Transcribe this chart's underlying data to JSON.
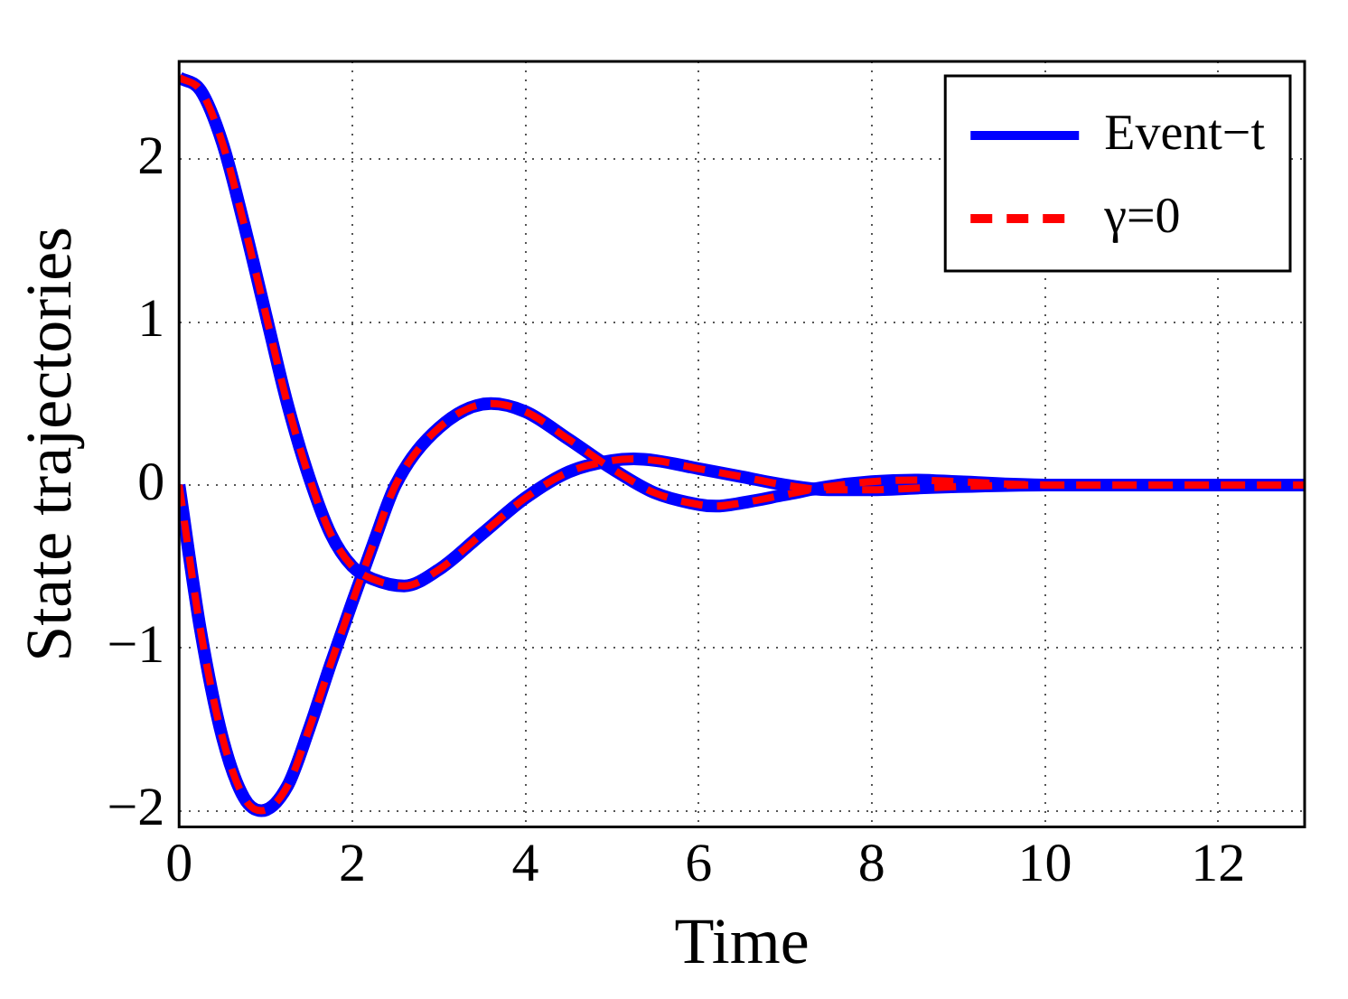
{
  "chart_data": {
    "type": "line",
    "xlabel": "Time",
    "ylabel": "State trajectories",
    "xlim": [
      0,
      13
    ],
    "xticks": [
      0,
      2,
      4,
      6,
      8,
      10,
      12
    ],
    "ylim": [
      -2.1,
      2.6
    ],
    "yticks": [
      -2,
      -1,
      0,
      1,
      2
    ],
    "grid": true,
    "legend": "top right",
    "marker": "none",
    "series": [
      {
        "name": "Event−t",
        "color": "#0000ff",
        "line_style": "solid",
        "x": [
          0,
          0.25,
          0.5,
          0.75,
          1,
          1.25,
          1.5,
          1.75,
          2,
          2.25,
          2.6,
          3,
          3.5,
          4,
          4.5,
          5,
          5.25,
          5.5,
          6,
          6.5,
          7,
          7.5,
          8,
          8.5,
          9,
          10,
          11,
          13
        ],
        "values": [
          2.5,
          2.42,
          2.1,
          1.6,
          1.05,
          0.5,
          0.05,
          -0.3,
          -0.5,
          -0.58,
          -0.62,
          -0.52,
          -0.3,
          -0.08,
          0.08,
          0.15,
          0.16,
          0.15,
          0.1,
          0.05,
          0,
          -0.03,
          -0.03,
          -0.02,
          -0.01,
          0,
          0,
          0
        ]
      },
      {
        "color": "#0000ff",
        "line_style": "solid",
        "x": [
          0,
          0.25,
          0.5,
          0.75,
          0.95,
          1.25,
          1.5,
          1.75,
          2,
          2.25,
          2.5,
          3,
          3.6,
          4,
          4.5,
          5,
          5.5,
          6,
          6.2,
          6.5,
          7,
          7.5,
          8,
          8.5,
          9,
          10,
          13
        ],
        "values": [
          0,
          -0.9,
          -1.55,
          -1.92,
          -2,
          -1.85,
          -1.5,
          -1.1,
          -0.72,
          -0.35,
          0,
          0.35,
          0.5,
          0.45,
          0.28,
          0.1,
          -0.05,
          -0.12,
          -0.13,
          -0.11,
          -0.06,
          -0.01,
          0.02,
          0.03,
          0.02,
          0,
          0
        ]
      },
      {
        "name": "γ=0",
        "color": "#ff0000",
        "line_style": "dashed",
        "x": [
          0,
          0.25,
          0.5,
          0.75,
          1,
          1.25,
          1.5,
          1.75,
          2,
          2.25,
          2.6,
          3,
          3.5,
          4,
          4.5,
          5,
          5.25,
          5.5,
          6,
          6.5,
          7,
          7.5,
          8,
          8.5,
          9,
          10,
          11,
          13
        ],
        "values": [
          2.5,
          2.42,
          2.1,
          1.6,
          1.05,
          0.5,
          0.05,
          -0.3,
          -0.5,
          -0.58,
          -0.62,
          -0.52,
          -0.3,
          -0.08,
          0.08,
          0.15,
          0.16,
          0.15,
          0.1,
          0.05,
          0,
          -0.03,
          -0.03,
          -0.02,
          -0.01,
          0,
          0,
          0
        ]
      },
      {
        "color": "#ff0000",
        "line_style": "dashed",
        "x": [
          0,
          0.25,
          0.5,
          0.75,
          0.95,
          1.25,
          1.5,
          1.75,
          2,
          2.25,
          2.5,
          3,
          3.6,
          4,
          4.5,
          5,
          5.5,
          6,
          6.2,
          6.5,
          7,
          7.5,
          8,
          8.5,
          9,
          10,
          13
        ],
        "values": [
          0,
          -0.9,
          -1.55,
          -1.92,
          -2,
          -1.85,
          -1.5,
          -1.1,
          -0.72,
          -0.35,
          0,
          0.35,
          0.5,
          0.45,
          0.28,
          0.1,
          -0.05,
          -0.12,
          -0.13,
          -0.11,
          -0.06,
          -0.01,
          0.02,
          0.03,
          0.02,
          0,
          0
        ]
      }
    ]
  }
}
